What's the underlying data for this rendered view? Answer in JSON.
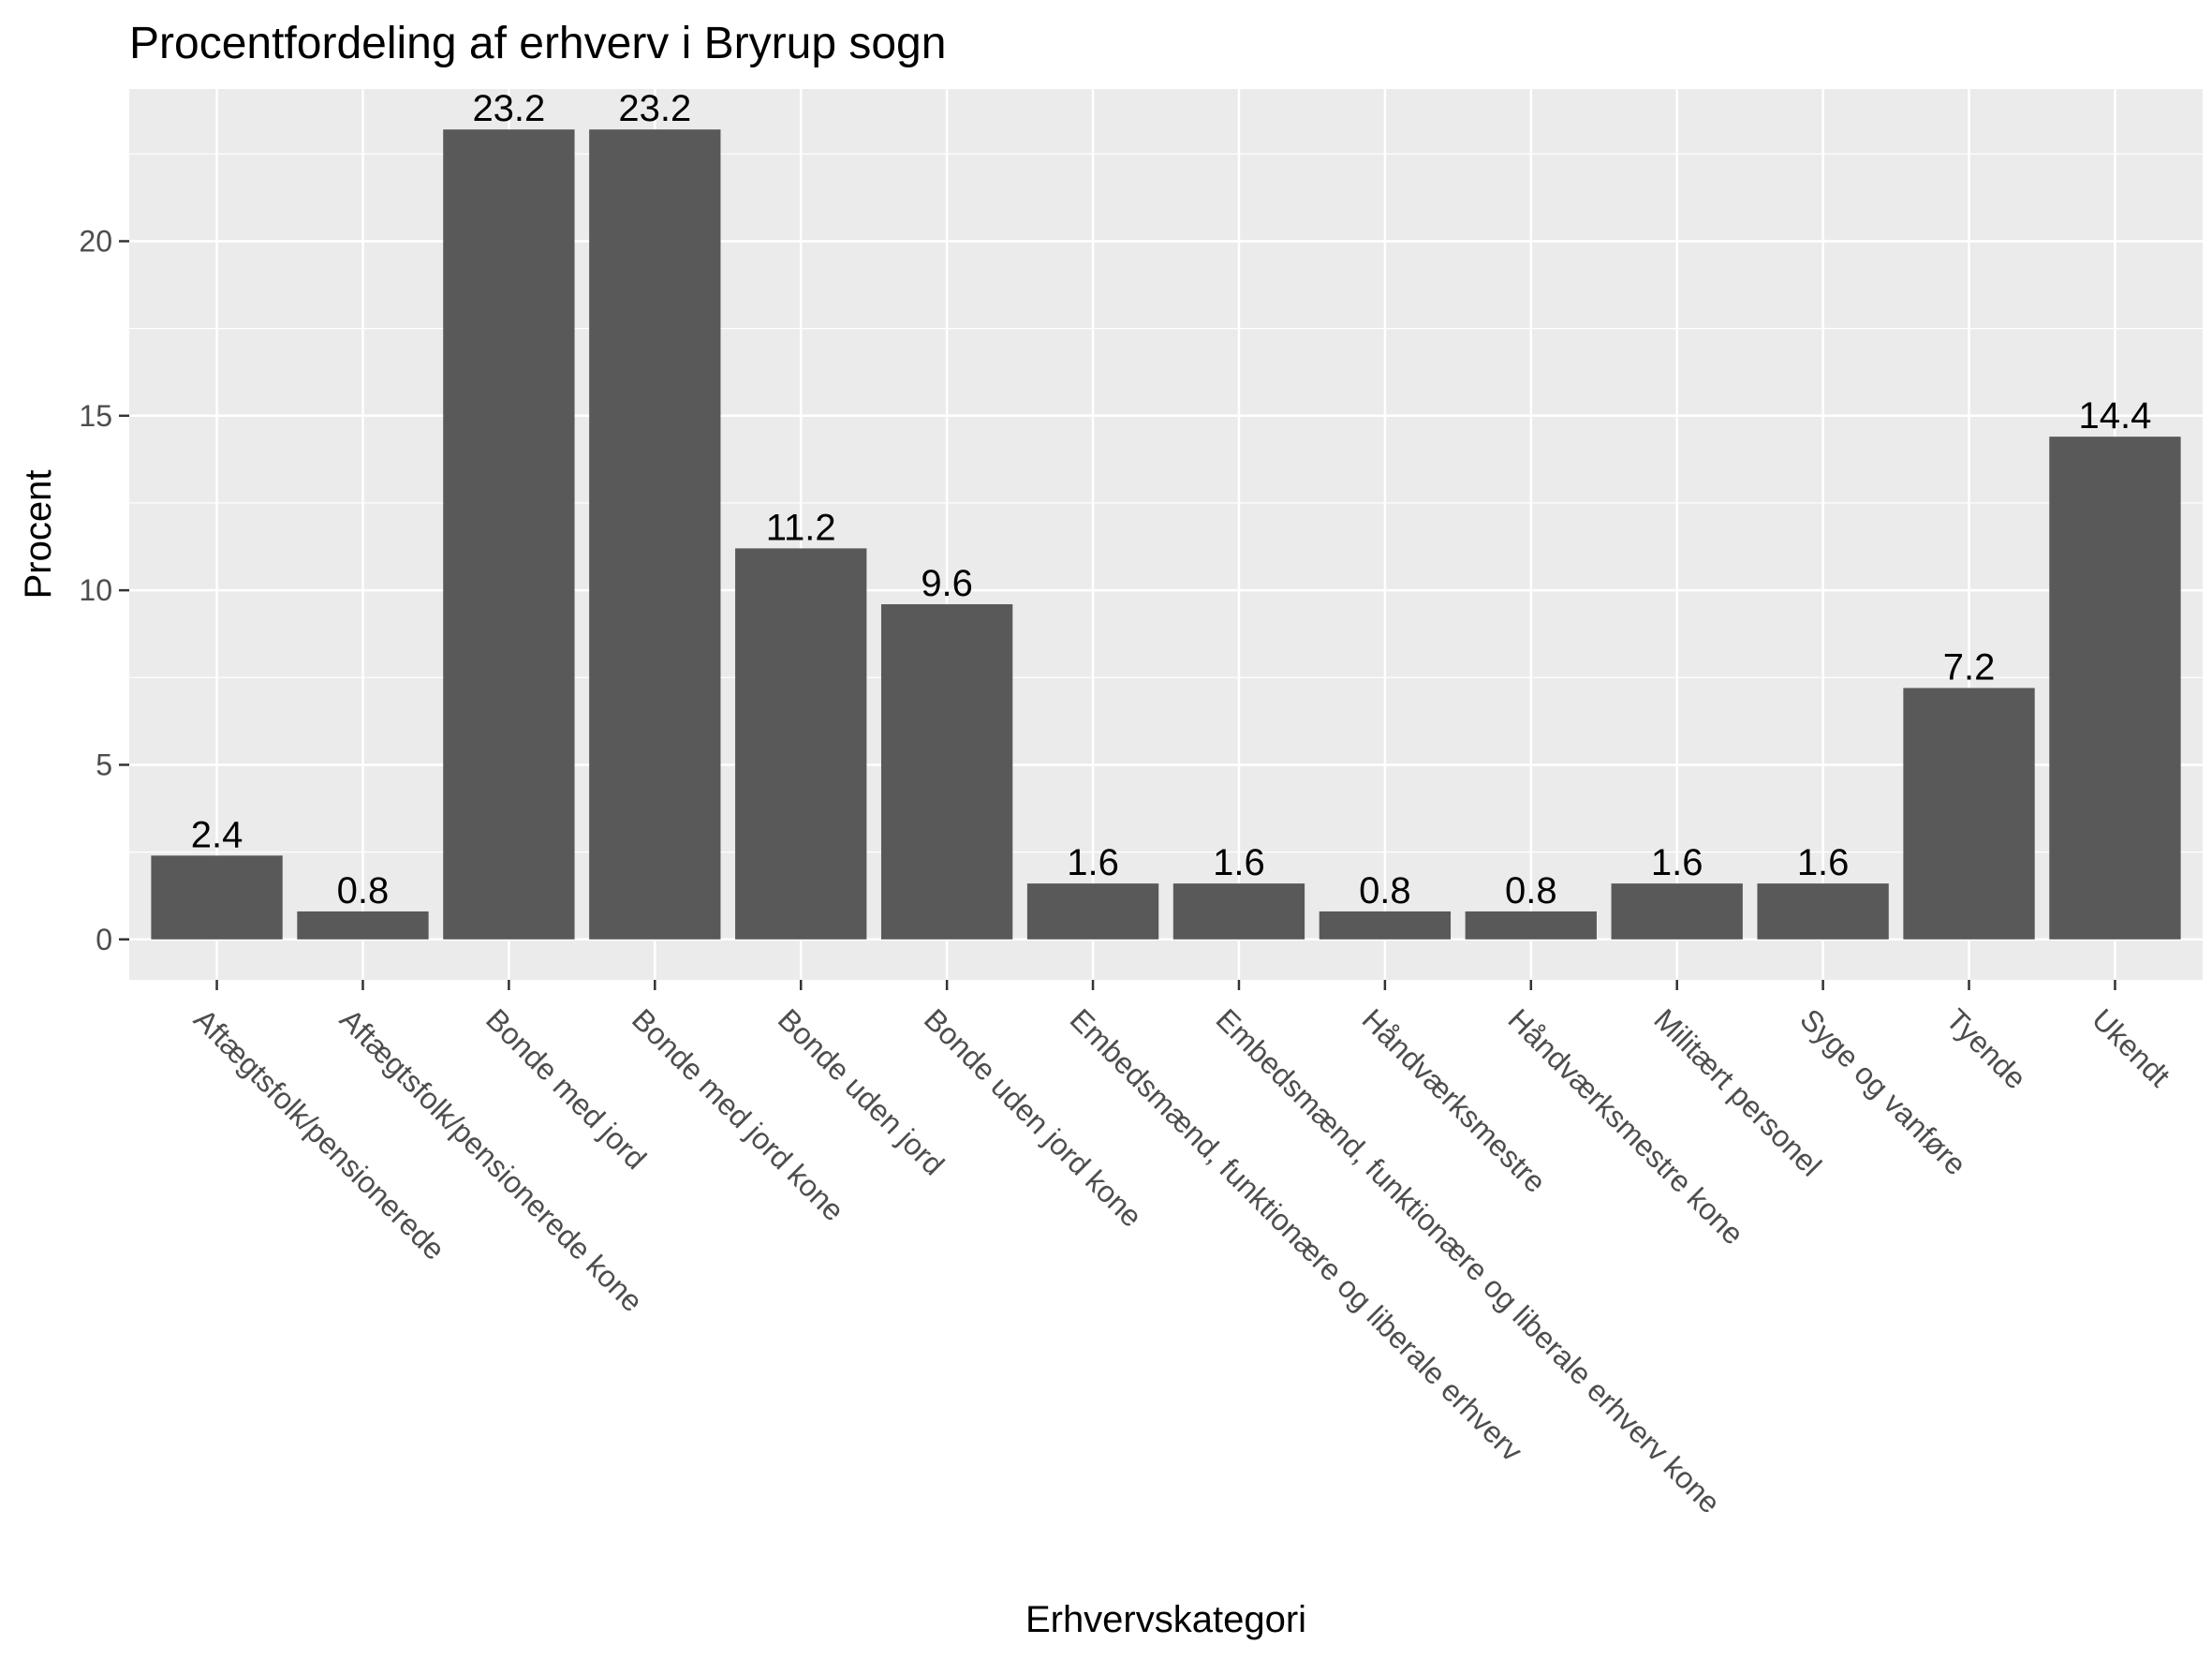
{
  "chart_data": {
    "type": "bar",
    "title": "Procentfordeling af erhverv i Bryrup sogn",
    "xlabel": "Erhvervskategori",
    "ylabel": "Procent",
    "categories": [
      "Aftægtsfolk/pensionerede",
      "Aftægtsfolk/pensionerede kone",
      "Bonde med jord",
      "Bonde med jord kone",
      "Bonde uden jord",
      "Bonde uden jord kone",
      "Embedsmænd, funktionære og liberale erhverv",
      "Embedsmænd, funktionære og liberale erhverv kone",
      "Håndværksmestre",
      "Håndværksmestre kone",
      "Militært personel",
      "Syge og vanføre",
      "Tyende",
      "Ukendt"
    ],
    "values": [
      2.4,
      0.8,
      23.2,
      23.2,
      11.2,
      9.6,
      1.6,
      1.6,
      0.8,
      0.8,
      1.6,
      1.6,
      7.2,
      14.4
    ],
    "data_labels": [
      "2.4",
      "0.8",
      "23.2",
      "23.2",
      "11.2",
      "9.6",
      "1.6",
      "1.6",
      "0.8",
      "0.8",
      "1.6",
      "1.6",
      "7.2",
      "14.4"
    ],
    "yticks": [
      0,
      5,
      10,
      15,
      20
    ],
    "ytick_labels": [
      "0",
      "5",
      "10",
      "15",
      "20"
    ],
    "ylim": [
      -1.16,
      24.36
    ],
    "grid": true,
    "legend": "none",
    "colors": {
      "bar": "#595959",
      "panel": "#ebebeb",
      "grid": "#ffffff",
      "tick_text": "#4d4d4d",
      "text": "#000000"
    }
  }
}
